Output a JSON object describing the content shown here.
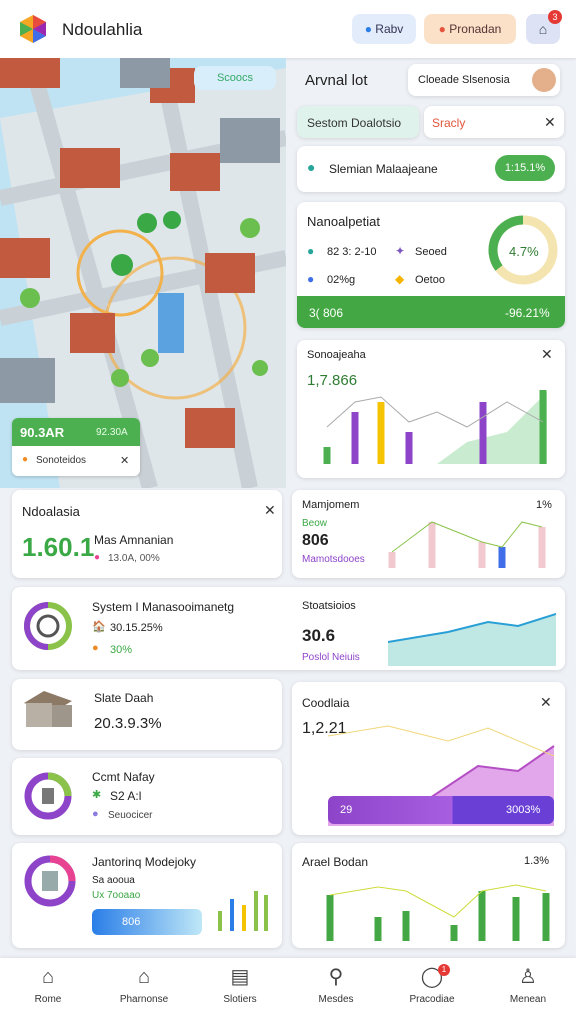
{
  "header": {
    "brand": "Ndoulahlia",
    "button_1": "Rabv",
    "button_2": "Pronadan",
    "badge": "3"
  },
  "map": {
    "badge": "Scoocs",
    "panel_value_1": "90.3AR",
    "panel_value_2": "92.30A",
    "panel_label": "Sonoteidos"
  },
  "top_panel": {
    "title": "Arvnal lot",
    "select": "Cloeade Slsenosia",
    "tab_1": "Sestom Doalotsio",
    "tab_2": "Sracly"
  },
  "status_card": {
    "label": "Slemian Malaajeane",
    "pill": "1:15.1%"
  },
  "summary_card": {
    "title": "Nanoalpetiat",
    "stat_1": "82 3: 2-10",
    "stat_2": "Seoed",
    "stat_3": "02%g",
    "stat_4": "Oetoo",
    "donut_label": "4.7%",
    "bar_left": "3( 806",
    "bar_right": "-96.21%"
  },
  "chart_card_1": {
    "title": "Sonoajeaha",
    "value": "1,7.866"
  },
  "card_a": {
    "title": "Ndoalasia",
    "value": "1.60.1",
    "label": "Mas Amnanian",
    "sub": "13.0A, 00%"
  },
  "card_b": {
    "title": "Mamjomem",
    "corner": "1%",
    "tag": "Beow",
    "value": "806",
    "sub": "Mamotsdooes"
  },
  "card_c": {
    "title": "System I Manasooimanetg",
    "line_1": "30.15.25%",
    "line_2": "30%"
  },
  "card_d": {
    "title": "Stoatsioios",
    "value": "30.6",
    "sub": "Poslol Neiuis"
  },
  "card_e": {
    "title": "Slate Daah",
    "value": "20.3.9.3%"
  },
  "card_f": {
    "title": "Ccmt Nafay",
    "line_1": "S2 A:l",
    "line_2": "Seuocicer"
  },
  "card_g": {
    "title": "Jantorinq Modejoky",
    "line_1": "Sa aooua",
    "line_2": "Ux 7ooaao",
    "button": "806"
  },
  "card_h": {
    "title": "Coodlaia",
    "value": "1,2.21",
    "bar_left": "29",
    "bar_right": "3003%"
  },
  "card_i": {
    "title": "Arael Bodan",
    "corner": "1.3%"
  },
  "nav": {
    "items": [
      "Rome",
      "Pharnonse",
      "Slotiers",
      "Mesdes",
      "Pracodiae",
      "Menean"
    ],
    "badge": "1"
  }
}
